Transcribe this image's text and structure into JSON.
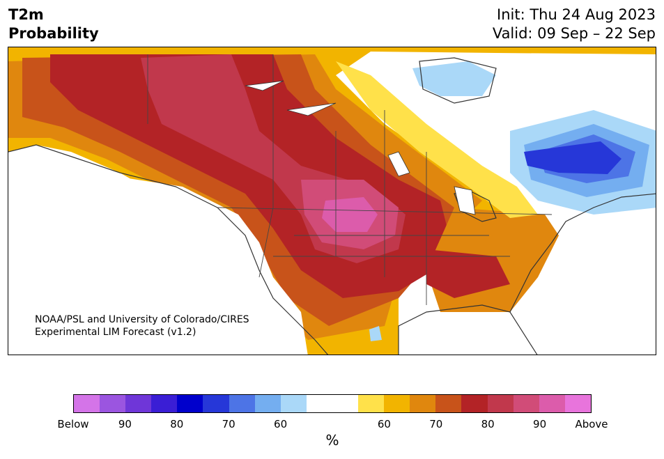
{
  "header": {
    "variable_line1": "T2m",
    "variable_line2": "Probability",
    "init": "Init: Thu 24 Aug 2023",
    "valid": "Valid: 09 Sep – 22 Sep"
  },
  "map": {
    "region": "North America",
    "credit_line1": "NOAA/PSL and University of Colorado/CIRES",
    "credit_line2": "Experimental LIM Forecast (v1.2)"
  },
  "colorbar": {
    "unit": "%",
    "colors": [
      "#d474e8",
      "#9b55e0",
      "#6f36d8",
      "#3a1ed5",
      "#0000cc",
      "#2637d8",
      "#4d74e6",
      "#74aef0",
      "#aad8f8",
      "#ffffff",
      "#ffffff",
      "#ffe14a",
      "#f2b400",
      "#e0870e",
      "#c8531a",
      "#b32326",
      "#c1384c",
      "#d14c78",
      "#dc5cab",
      "#e874dc"
    ],
    "tick_labels": [
      "Below",
      "90",
      "80",
      "70",
      "60",
      "60",
      "70",
      "80",
      "90",
      "Above"
    ]
  }
}
